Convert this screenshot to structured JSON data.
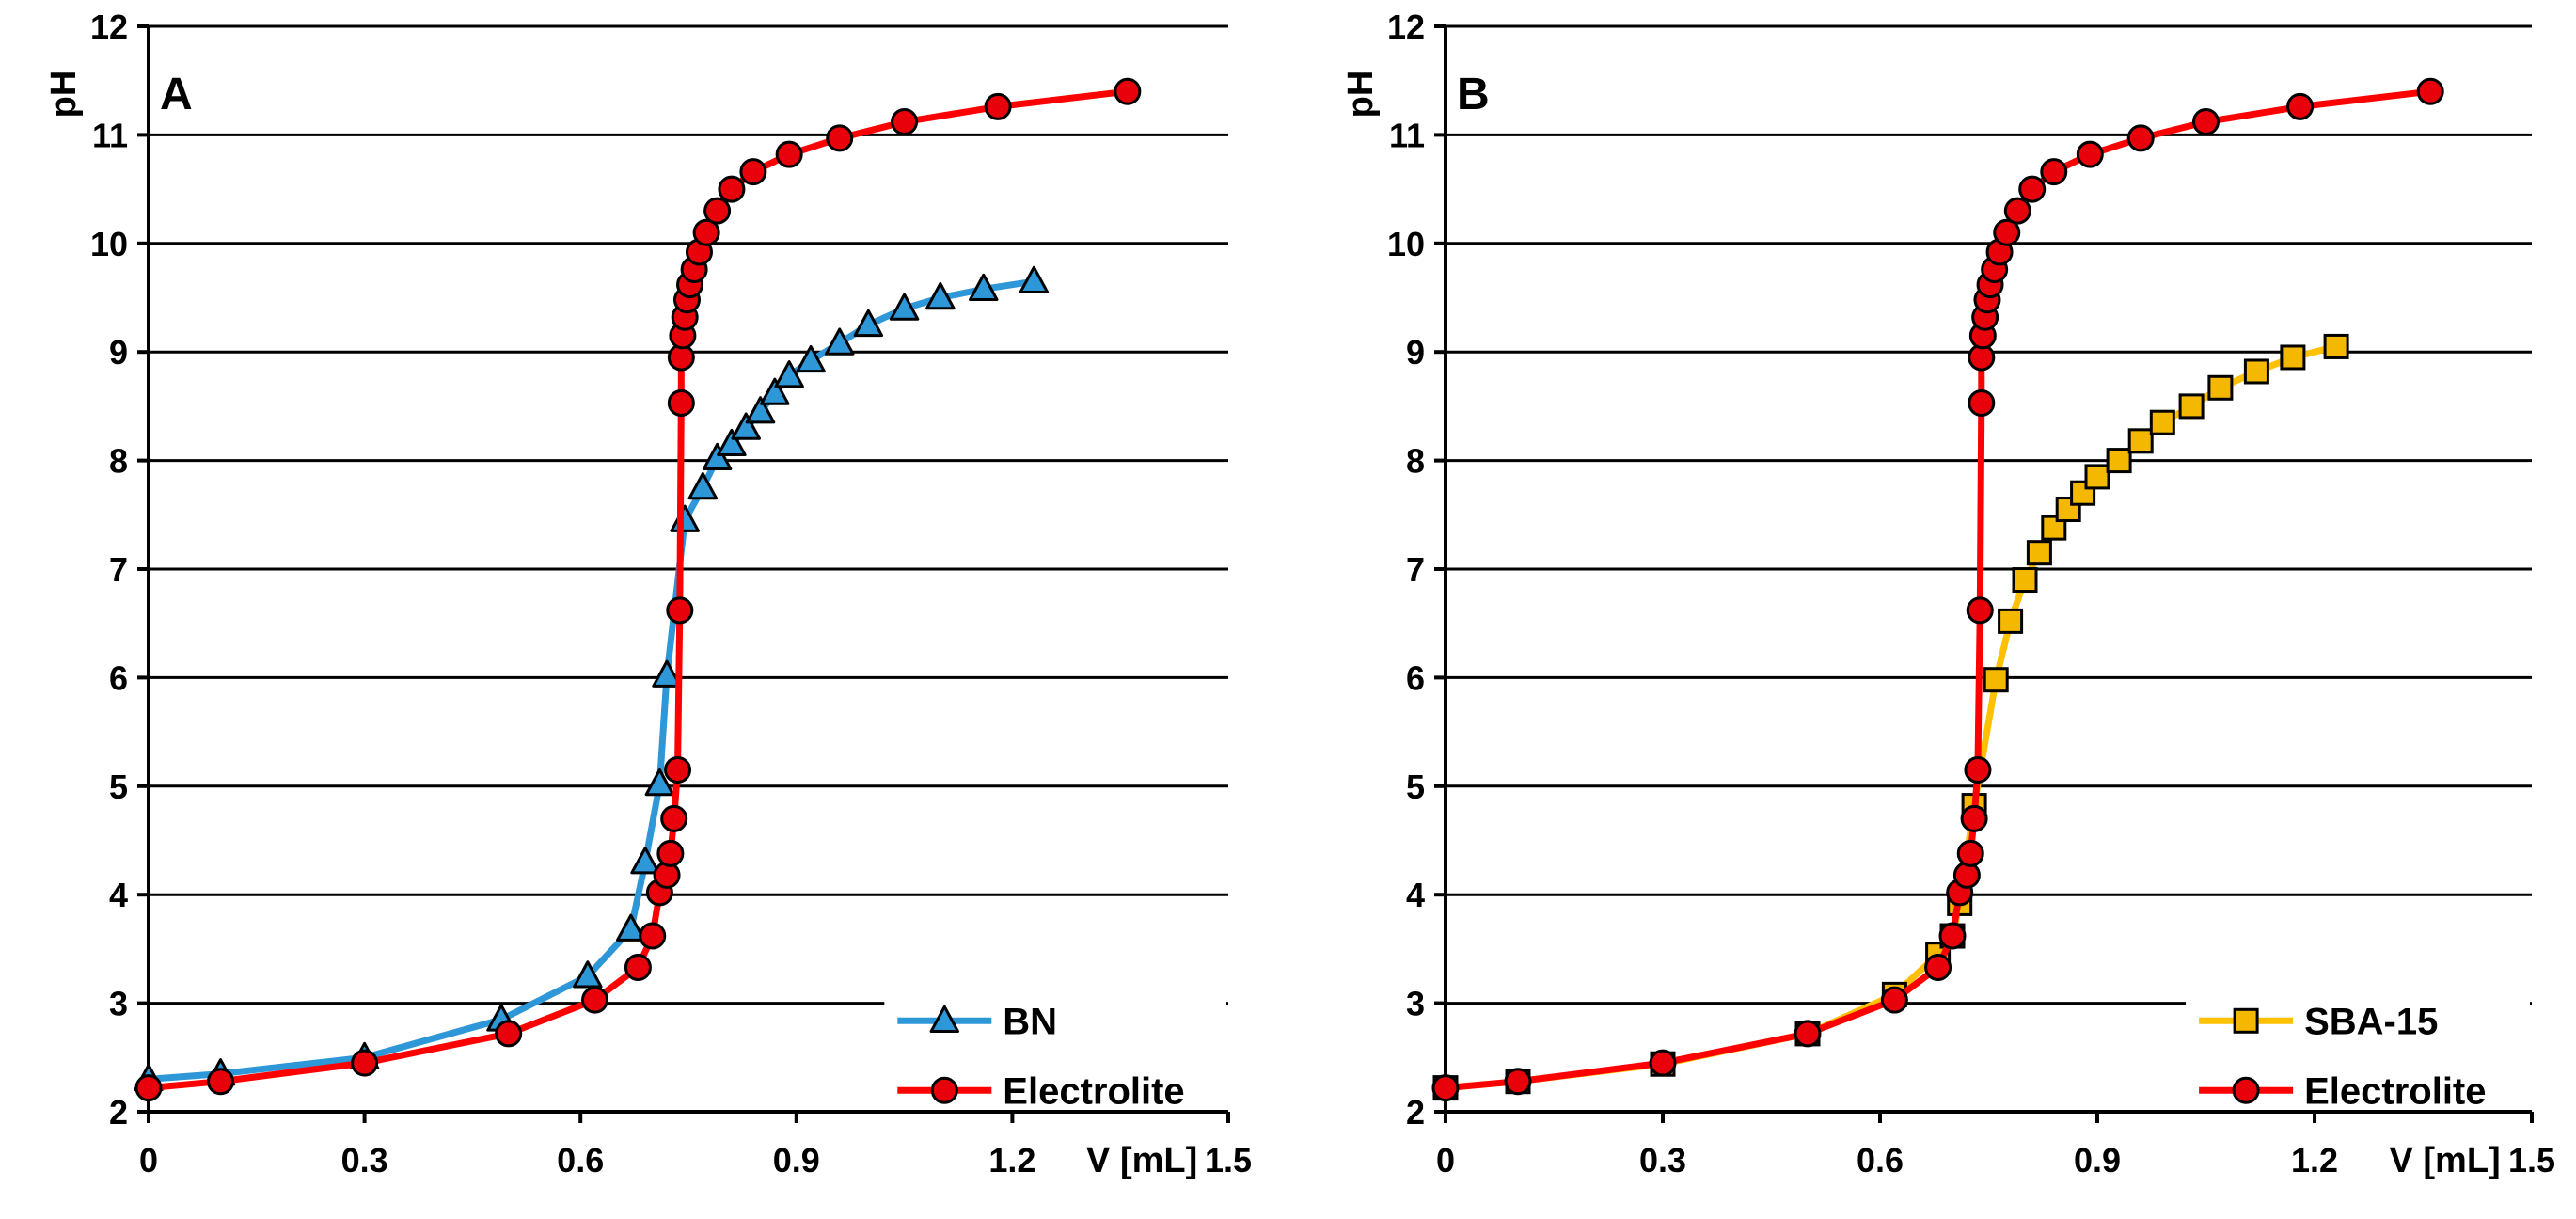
{
  "chart_data": [
    {
      "type": "line",
      "panel_label": "A",
      "ylabel": "pH",
      "xlabel": "V [mL]",
      "xlim": [
        0,
        1.5
      ],
      "ylim": [
        2,
        12
      ],
      "x_tick_labels": [
        "0",
        "0.3",
        "0.6",
        "0.9",
        "1.2",
        "1.5"
      ],
      "y_tick_labels": [
        "2",
        "3",
        "4",
        "5",
        "6",
        "7",
        "8",
        "9",
        "10",
        "11",
        "12"
      ],
      "grid": "horizontal",
      "legend": "bottom-right",
      "series": [
        {
          "name": "BN",
          "marker": "triangle",
          "line_color": "#2E97D8",
          "marker_fill": "#2E97D8",
          "x": [
            0,
            0.1,
            0.3,
            0.49,
            0.61,
            0.67,
            0.69,
            0.71,
            0.72,
            0.745,
            0.77,
            0.79,
            0.81,
            0.83,
            0.85,
            0.87,
            0.89,
            0.92,
            0.96,
            1.0,
            1.05,
            1.1,
            1.16,
            1.23
          ],
          "y": [
            2.3,
            2.35,
            2.5,
            2.85,
            3.25,
            3.68,
            4.3,
            5.02,
            6.02,
            7.45,
            7.75,
            8.02,
            8.15,
            8.3,
            8.45,
            8.62,
            8.78,
            8.92,
            9.08,
            9.25,
            9.4,
            9.5,
            9.58,
            9.65
          ]
        },
        {
          "name": "Electrolite",
          "marker": "circle",
          "line_color": "#FF0000",
          "marker_fill": "#E8000B",
          "x": [
            0,
            0.1,
            0.3,
            0.5,
            0.62,
            0.68,
            0.7,
            0.71,
            0.72,
            0.725,
            0.73,
            0.735,
            0.738,
            0.74,
            0.74,
            0.742,
            0.745,
            0.748,
            0.752,
            0.758,
            0.765,
            0.775,
            0.79,
            0.81,
            0.84,
            0.89,
            0.96,
            1.05,
            1.18,
            1.36
          ],
          "y": [
            2.22,
            2.28,
            2.45,
            2.72,
            3.03,
            3.33,
            3.62,
            4.02,
            4.18,
            4.38,
            4.7,
            5.15,
            6.62,
            8.53,
            8.95,
            9.15,
            9.32,
            9.48,
            9.62,
            9.76,
            9.92,
            10.1,
            10.3,
            10.5,
            10.66,
            10.82,
            10.97,
            11.12,
            11.26,
            11.4
          ]
        }
      ]
    },
    {
      "type": "line",
      "panel_label": "B",
      "ylabel": "pH",
      "xlabel": "V [mL]",
      "xlim": [
        0,
        1.5
      ],
      "ylim": [
        2,
        12
      ],
      "x_tick_labels": [
        "0",
        "0.3",
        "0.6",
        "0.9",
        "1.2",
        "1.5"
      ],
      "y_tick_labels": [
        "2",
        "3",
        "4",
        "5",
        "6",
        "7",
        "8",
        "9",
        "10",
        "11",
        "12"
      ],
      "grid": "horizontal",
      "legend": "bottom-right",
      "series": [
        {
          "name": "SBA-15",
          "marker": "square",
          "line_color": "#FFC000",
          "marker_fill": "#F5B800",
          "x": [
            0,
            0.1,
            0.3,
            0.5,
            0.62,
            0.68,
            0.7,
            0.71,
            0.73,
            0.76,
            0.78,
            0.8,
            0.82,
            0.84,
            0.86,
            0.88,
            0.9,
            0.93,
            0.96,
            0.99,
            1.03,
            1.07,
            1.12,
            1.17,
            1.23
          ],
          "y": [
            2.22,
            2.28,
            2.44,
            2.72,
            3.08,
            3.45,
            3.62,
            3.92,
            4.82,
            5.98,
            6.52,
            6.9,
            7.15,
            7.38,
            7.55,
            7.7,
            7.85,
            8.0,
            8.18,
            8.35,
            8.5,
            8.67,
            8.82,
            8.95,
            9.05
          ]
        },
        {
          "name": "Electrolite",
          "marker": "circle",
          "line_color": "#FF0000",
          "marker_fill": "#E8000B",
          "x": [
            0,
            0.1,
            0.3,
            0.5,
            0.62,
            0.68,
            0.7,
            0.71,
            0.72,
            0.725,
            0.73,
            0.735,
            0.738,
            0.74,
            0.74,
            0.742,
            0.745,
            0.748,
            0.752,
            0.758,
            0.765,
            0.775,
            0.79,
            0.81,
            0.84,
            0.89,
            0.96,
            1.05,
            1.18,
            1.36
          ],
          "y": [
            2.22,
            2.28,
            2.45,
            2.72,
            3.03,
            3.33,
            3.62,
            4.02,
            4.18,
            4.38,
            4.7,
            5.15,
            6.62,
            8.53,
            8.95,
            9.15,
            9.32,
            9.48,
            9.62,
            9.76,
            9.92,
            10.1,
            10.3,
            10.5,
            10.66,
            10.82,
            10.97,
            11.12,
            11.26,
            11.4
          ]
        }
      ]
    }
  ]
}
